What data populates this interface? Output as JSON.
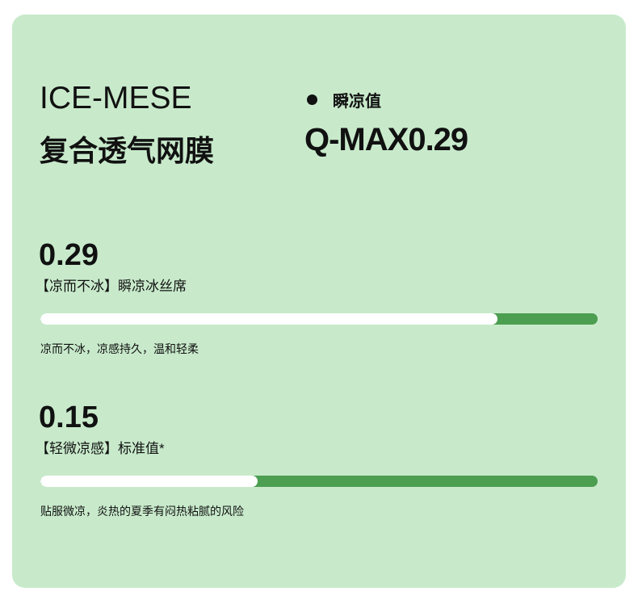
{
  "header": {
    "brand": "ICE-MESE",
    "subtitle": "复合透气网膜",
    "metric_label": "瞬凉值",
    "metric_value": "Q-MAX0.29"
  },
  "items": [
    {
      "value": "0.29",
      "label": "【凉而不冰】瞬凉冰丝席",
      "fill_percent": 82,
      "description": "凉而不冰，凉感持久，温和轻柔"
    },
    {
      "value": "0.15",
      "label": "【轻微凉感】标准值*",
      "fill_percent": 39,
      "description": "贴服微凉，炎热的夏季有闷热粘腻的风险"
    }
  ],
  "colors": {
    "background": "#c8eacb",
    "bar_track": "#4c9e50",
    "bar_fill": "#ffffff"
  }
}
